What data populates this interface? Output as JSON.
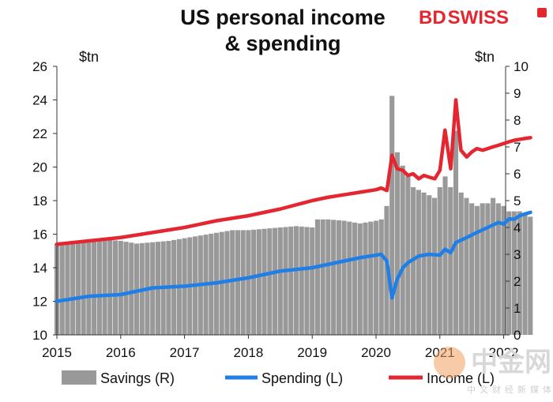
{
  "brand": {
    "part1": "BD",
    "part2": "SWISS"
  },
  "watermark": {
    "main": "中金网",
    "sub": "中文财经新媒体"
  },
  "colors": {
    "savings": "#999999",
    "spending": "#1f7fe6",
    "income": "#e3262f"
  },
  "chart_data": {
    "type": "bar+line",
    "title_lines": [
      "US personal income",
      "& spending"
    ],
    "left_unit": "$tn",
    "right_unit": "$tn",
    "x_ticks": [
      "2015",
      "2016",
      "2017",
      "2018",
      "2019",
      "2020",
      "2021",
      "2022"
    ],
    "y_left": {
      "min": 10,
      "max": 26,
      "ticks": [
        "10",
        "12",
        "14",
        "16",
        "18",
        "20",
        "22",
        "24",
        "26"
      ]
    },
    "y_right": {
      "min": 0,
      "max": 10,
      "ticks": [
        "0",
        "1",
        "2",
        "3",
        "4",
        "5",
        "6",
        "7",
        "8",
        "9",
        "10"
      ]
    },
    "legend": [
      "Savings (R)",
      "Spending (L)",
      "Income (L)"
    ],
    "x_start": 2015,
    "x_end": 2022.42,
    "savings_R": {
      "x": [
        2015.0,
        2015.25,
        2015.5,
        2015.75,
        2016.0,
        2016.25,
        2016.5,
        2016.75,
        2017.0,
        2017.25,
        2017.5,
        2017.75,
        2018.0,
        2018.25,
        2018.5,
        2018.75,
        2019.0,
        2019.08,
        2019.25,
        2019.5,
        2019.75,
        2020.0,
        2020.08,
        2020.17,
        2020.25,
        2020.33,
        2020.42,
        2020.5,
        2020.58,
        2020.67,
        2020.75,
        2020.83,
        2020.92,
        2021.0,
        2021.08,
        2021.17,
        2021.25,
        2021.33,
        2021.42,
        2021.5,
        2021.58,
        2021.67,
        2021.75,
        2021.83,
        2021.92,
        2022.0,
        2022.08,
        2022.17,
        2022.25,
        2022.33,
        2022.42
      ],
      "y": [
        3.4,
        3.4,
        3.5,
        3.55,
        3.5,
        3.4,
        3.45,
        3.5,
        3.6,
        3.7,
        3.8,
        3.9,
        3.9,
        3.95,
        4.0,
        4.05,
        4.0,
        4.3,
        4.3,
        4.25,
        4.15,
        4.25,
        4.3,
        4.8,
        8.9,
        6.8,
        6.3,
        5.9,
        5.5,
        5.4,
        5.3,
        5.2,
        5.1,
        5.5,
        5.9,
        5.5,
        7.6,
        5.3,
        5.1,
        4.9,
        4.8,
        4.9,
        4.9,
        5.1,
        4.9,
        4.8,
        4.6,
        4.6,
        4.6,
        4.5,
        4.4
      ]
    },
    "spending_L": {
      "x": [
        2015.0,
        2015.5,
        2016.0,
        2016.5,
        2017.0,
        2017.5,
        2018.0,
        2018.5,
        2019.0,
        2019.25,
        2019.5,
        2019.75,
        2020.0,
        2020.08,
        2020.17,
        2020.25,
        2020.33,
        2020.42,
        2020.5,
        2020.67,
        2020.83,
        2021.0,
        2021.08,
        2021.17,
        2021.25,
        2021.42,
        2021.58,
        2021.75,
        2021.92,
        2022.0,
        2022.08,
        2022.17,
        2022.25,
        2022.33,
        2022.42
      ],
      "y": [
        12.0,
        12.3,
        12.4,
        12.8,
        12.9,
        13.1,
        13.4,
        13.8,
        14.0,
        14.2,
        14.4,
        14.6,
        14.75,
        14.8,
        14.4,
        12.2,
        13.3,
        14.0,
        14.3,
        14.7,
        14.8,
        14.75,
        15.1,
        14.9,
        15.5,
        15.8,
        16.1,
        16.4,
        16.7,
        16.6,
        16.9,
        16.9,
        17.1,
        17.2,
        17.3
      ]
    },
    "income_L": {
      "x": [
        2015.0,
        2015.5,
        2016.0,
        2016.5,
        2017.0,
        2017.5,
        2018.0,
        2018.5,
        2019.0,
        2019.25,
        2019.5,
        2019.75,
        2020.0,
        2020.08,
        2020.17,
        2020.25,
        2020.33,
        2020.42,
        2020.5,
        2020.58,
        2020.67,
        2020.75,
        2020.83,
        2020.92,
        2021.0,
        2021.08,
        2021.17,
        2021.25,
        2021.33,
        2021.42,
        2021.5,
        2021.58,
        2021.67,
        2021.75,
        2021.83,
        2021.92,
        2022.0,
        2022.08,
        2022.17,
        2022.25,
        2022.33,
        2022.42
      ],
      "y": [
        15.4,
        15.6,
        15.8,
        16.1,
        16.4,
        16.8,
        17.1,
        17.5,
        18.0,
        18.2,
        18.35,
        18.5,
        18.65,
        18.75,
        18.6,
        20.7,
        19.9,
        19.8,
        19.5,
        19.6,
        19.3,
        19.5,
        19.4,
        19.3,
        19.8,
        22.2,
        19.9,
        24.0,
        21.0,
        20.6,
        20.9,
        21.1,
        21.0,
        21.1,
        21.2,
        21.3,
        21.4,
        21.5,
        21.6,
        21.65,
        21.7,
        21.75
      ]
    }
  }
}
